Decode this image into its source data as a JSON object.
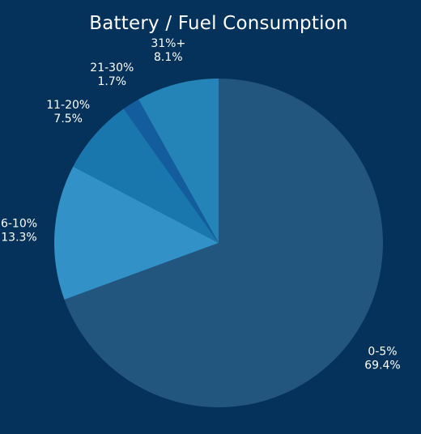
{
  "chart_data": {
    "type": "pie",
    "title": "Battery / Fuel Consumption",
    "start_angle_deg": 0,
    "direction": "clockwise",
    "slices": [
      {
        "label": "0-5%",
        "value": 69.4,
        "value_label": "69.4%",
        "color": "#22567f"
      },
      {
        "label": "6-10%",
        "value": 13.3,
        "value_label": "13.3%",
        "color": "#3291c6"
      },
      {
        "label": "11-20%",
        "value": 7.5,
        "value_label": "7.5%",
        "color": "#1a77ad"
      },
      {
        "label": "21-30%",
        "value": 1.7,
        "value_label": "1.7%",
        "color": "#135d9e"
      },
      {
        "label": "31%+",
        "value": 8.1,
        "value_label": "8.1%",
        "color": "#2484b8"
      }
    ]
  }
}
